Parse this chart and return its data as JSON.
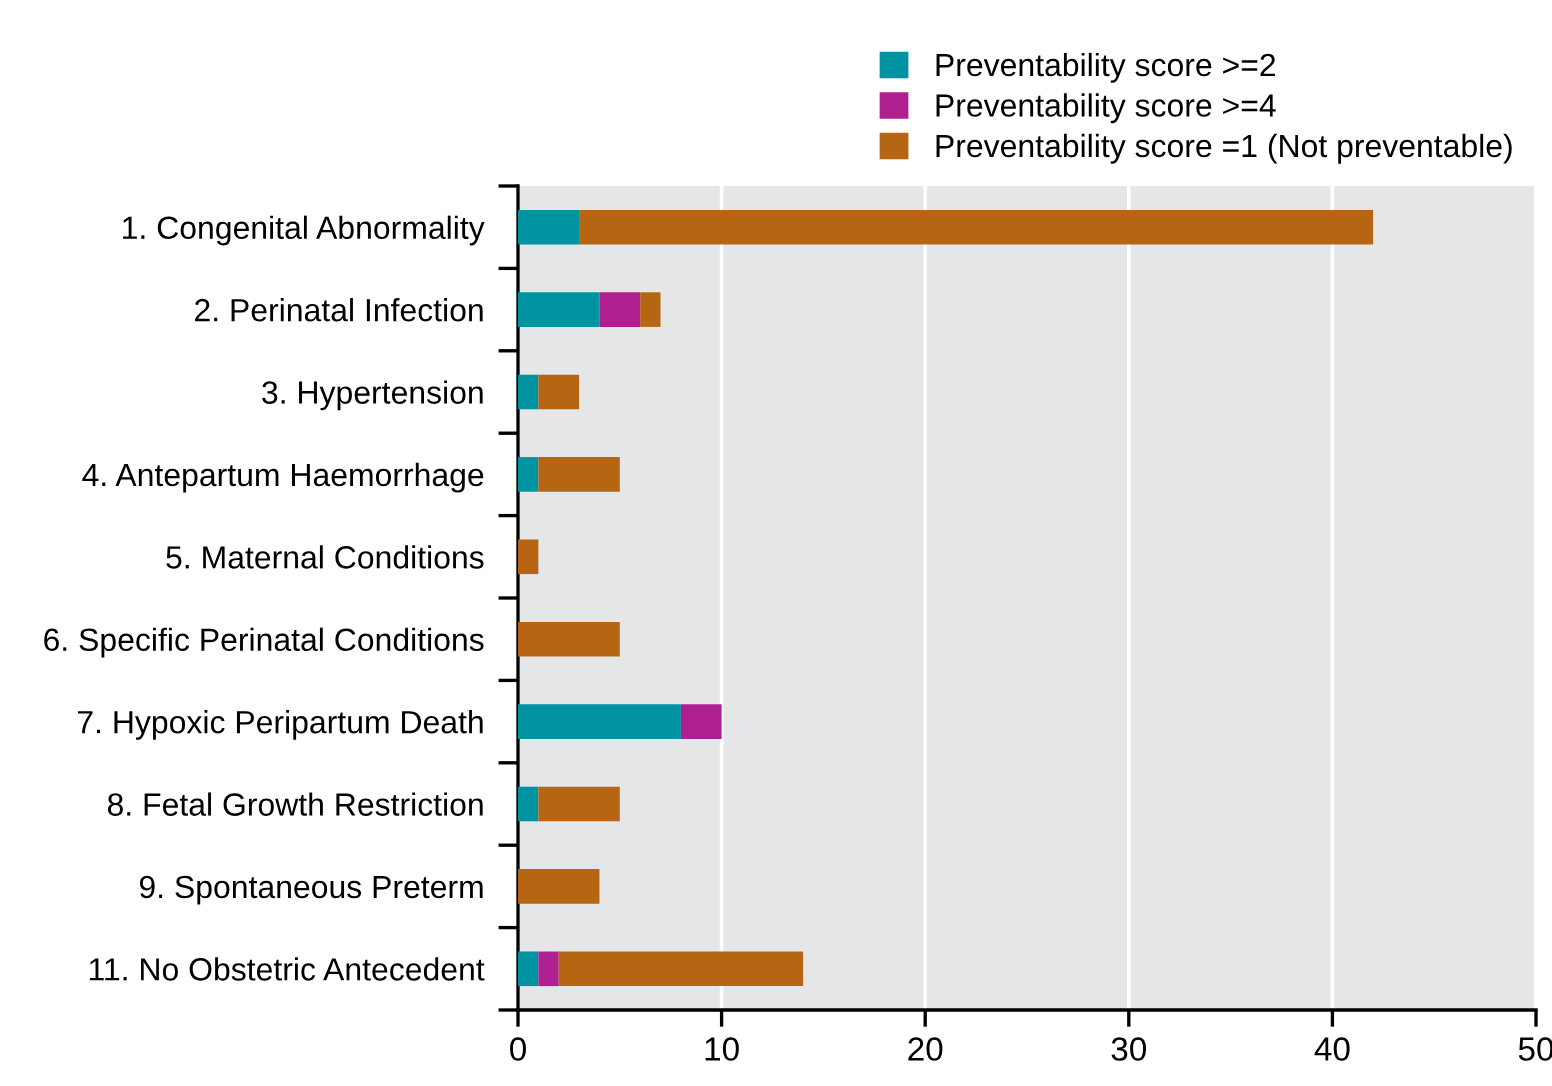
{
  "chart_data": {
    "type": "bar",
    "orientation": "horizontal",
    "stacked": true,
    "categories": [
      "1. Congenital Abnormality",
      "2. Perinatal Infection",
      "3. Hypertension",
      "4. Antepartum Haemorrhage",
      "5. Maternal Conditions",
      "6. Specific Perinatal Conditions",
      "7. Hypoxic Peripartum Death",
      "8. Fetal Growth Restriction",
      "9. Spontaneous Preterm",
      "11. No Obstetric Antecedent"
    ],
    "series": [
      {
        "name": "Preventability score >=2",
        "color": "#0093a1",
        "values": [
          3,
          4,
          1,
          1,
          0,
          0,
          8,
          1,
          0,
          1
        ]
      },
      {
        "name": "Preventability score >=4",
        "color": "#b01f8f",
        "values": [
          0,
          2,
          0,
          0,
          0,
          0,
          2,
          0,
          0,
          1
        ]
      },
      {
        "name": "Preventability score =1 (Not preventable)",
        "color": "#b66613",
        "values": [
          39,
          1,
          2,
          4,
          1,
          5,
          0,
          4,
          4,
          12
        ]
      }
    ],
    "xlim": [
      0,
      50
    ],
    "xticks": [
      0,
      10,
      20,
      30,
      40,
      50
    ],
    "grid": "x",
    "legend": "top right"
  }
}
